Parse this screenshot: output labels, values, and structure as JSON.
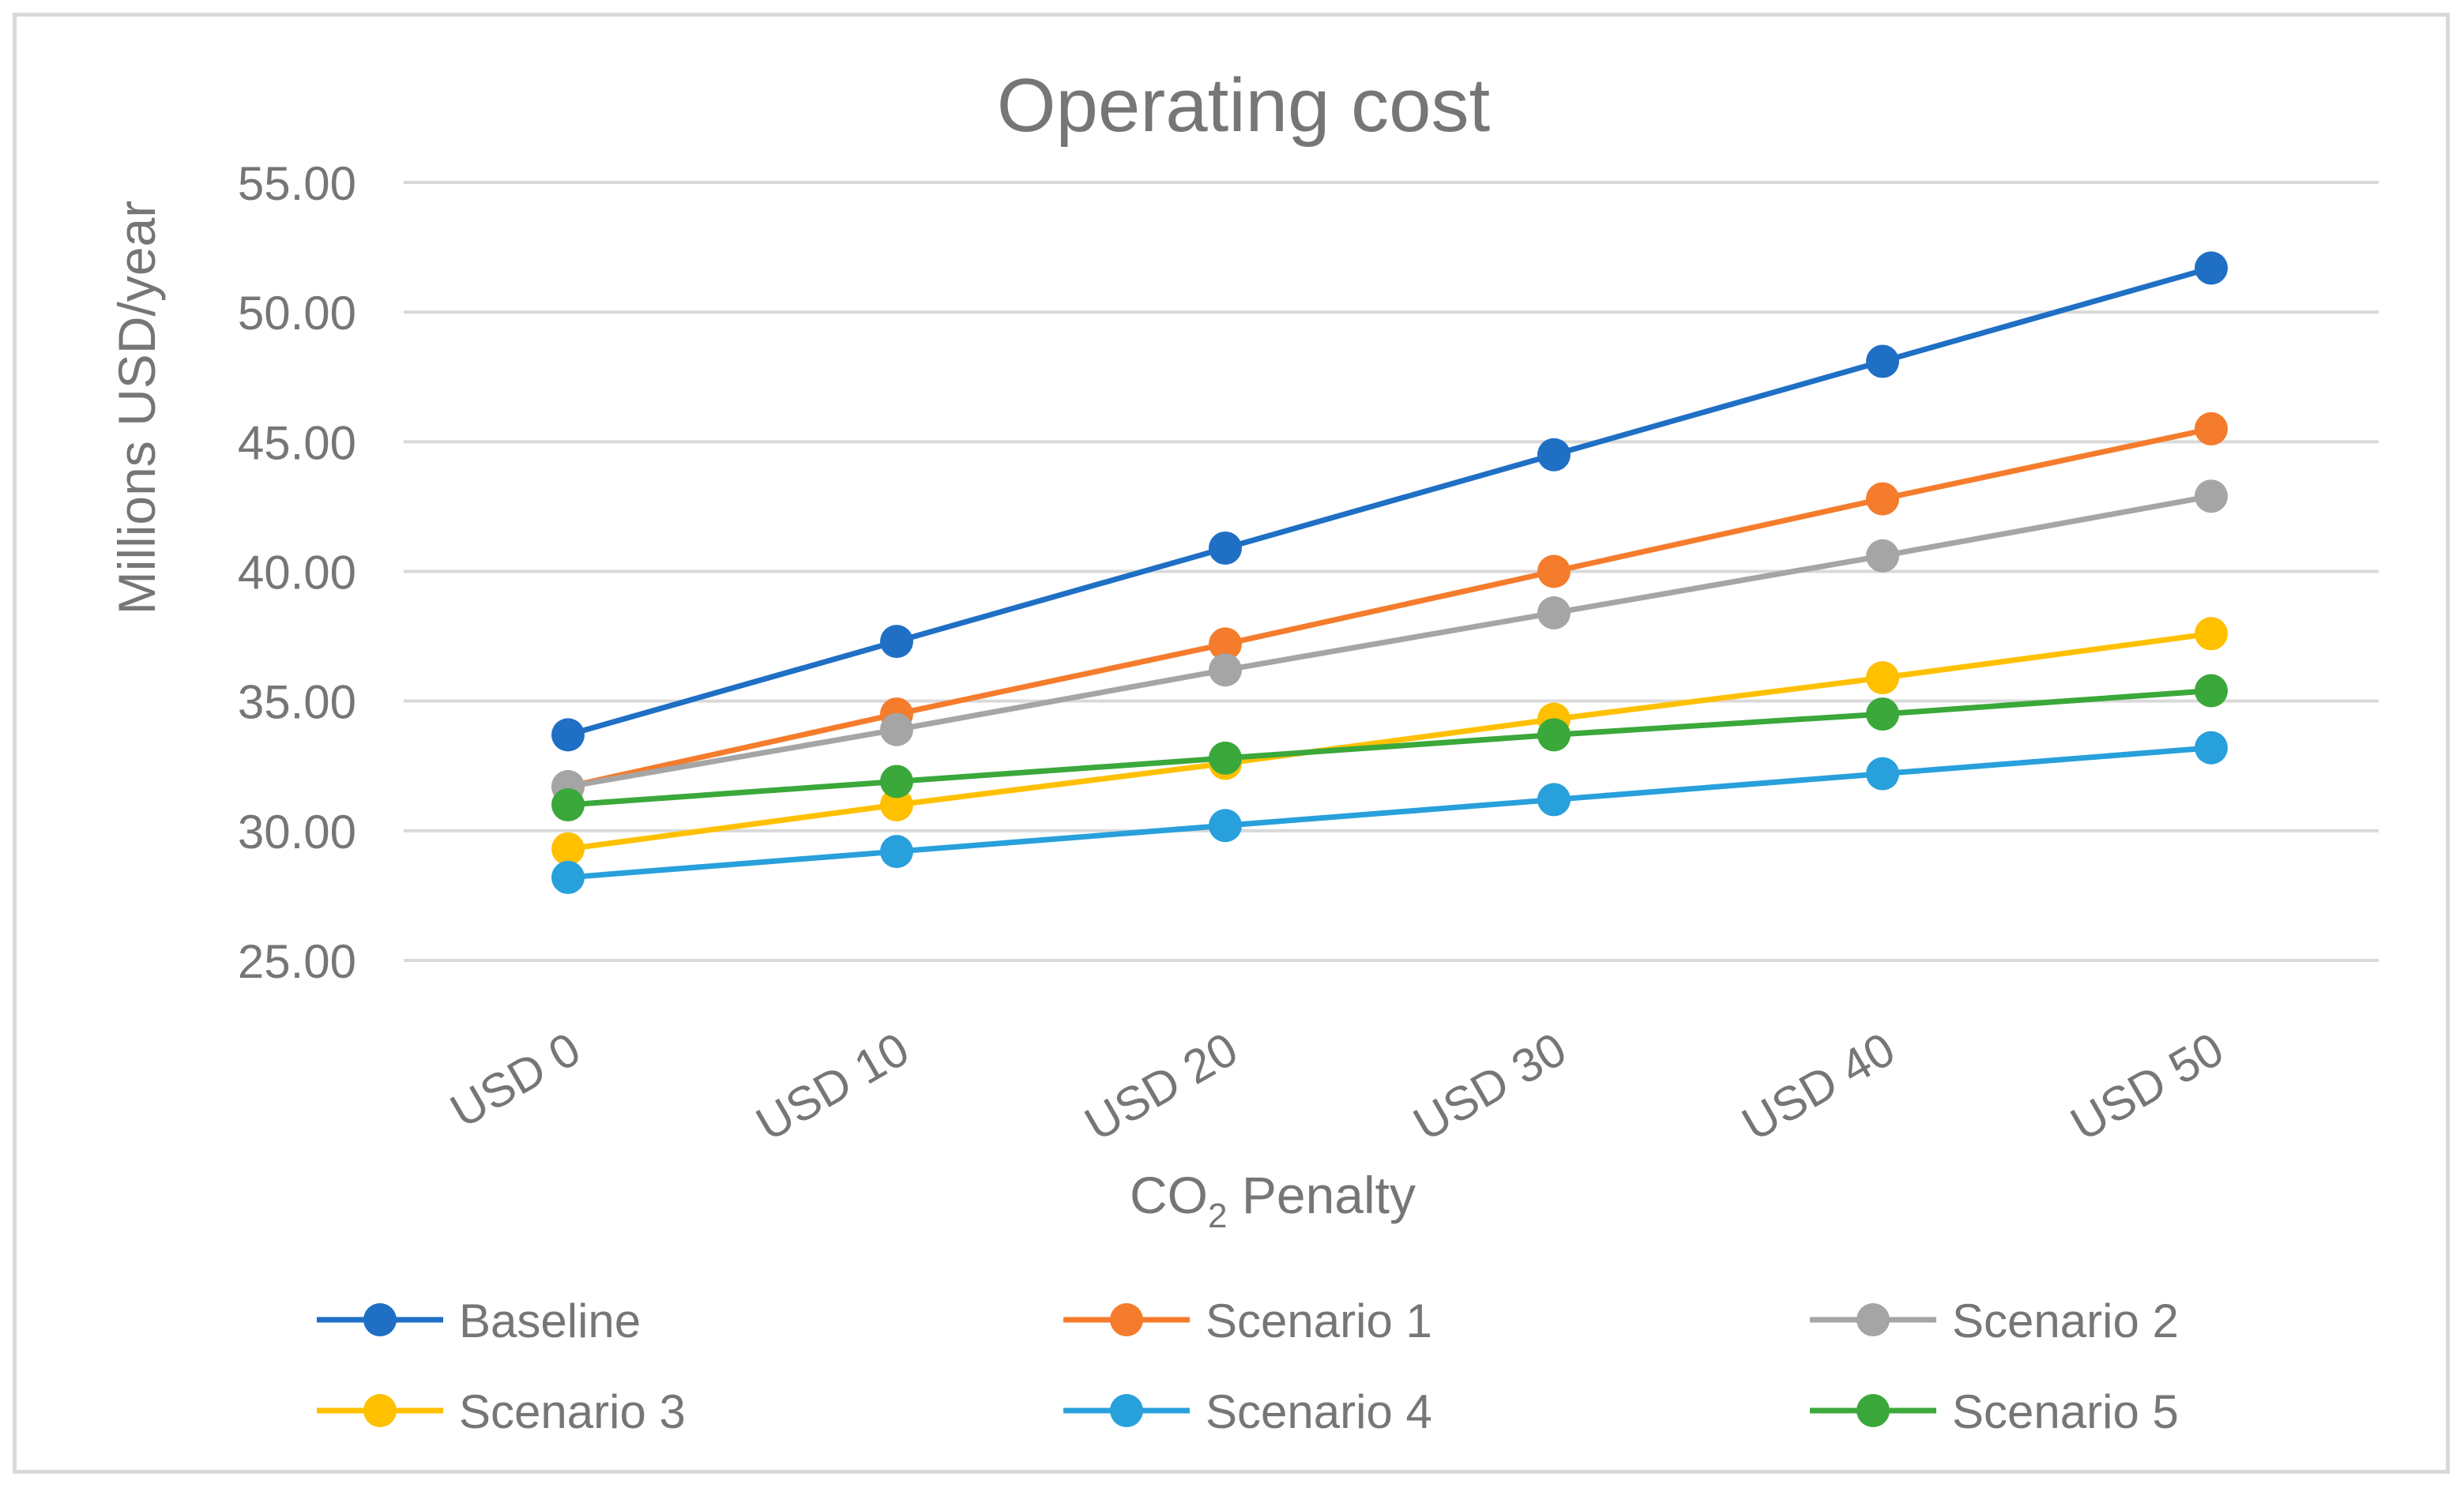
{
  "chart_data": {
    "type": "line",
    "title": "Operating cost",
    "xlabel": "CO",
    "xlabel_subscript": "2",
    "xlabel_suffix": " Penalty",
    "ylabel": "Millions USD/year",
    "ylim": [
      25,
      55
    ],
    "yticks": [
      25,
      30,
      35,
      40,
      45,
      50,
      55
    ],
    "ytick_labels": [
      "25.00",
      "30.00",
      "35.00",
      "40.00",
      "45.00",
      "50.00",
      "55.00"
    ],
    "grid": true,
    "legend_position": "bottom",
    "categories": [
      "USD 0",
      "USD 10",
      "USD 20",
      "USD 30",
      "USD 40",
      "USD 50"
    ],
    "series": [
      {
        "name": "Baseline",
        "color": "#1f6fc5",
        "values": [
          33.7,
          37.3,
          40.9,
          44.5,
          48.1,
          51.7
        ]
      },
      {
        "name": "Scenario 1",
        "color": "#f47c2c",
        "values": [
          31.7,
          34.5,
          37.2,
          40.0,
          42.8,
          45.5
        ]
      },
      {
        "name": "Scenario 2",
        "color": "#a5a5a5",
        "values": [
          31.7,
          33.9,
          36.2,
          38.4,
          40.6,
          42.9
        ]
      },
      {
        "name": "Scenario 3",
        "color": "#ffc000",
        "values": [
          29.3,
          31.0,
          32.6,
          34.3,
          35.9,
          37.6
        ]
      },
      {
        "name": "Scenario 4",
        "color": "#28a0dc",
        "values": [
          28.2,
          29.2,
          30.2,
          31.2,
          32.2,
          33.2
        ]
      },
      {
        "name": "Scenario 5",
        "color": "#3aa83a",
        "values": [
          31.0,
          31.9,
          32.8,
          33.7,
          34.5,
          35.4
        ]
      }
    ]
  }
}
